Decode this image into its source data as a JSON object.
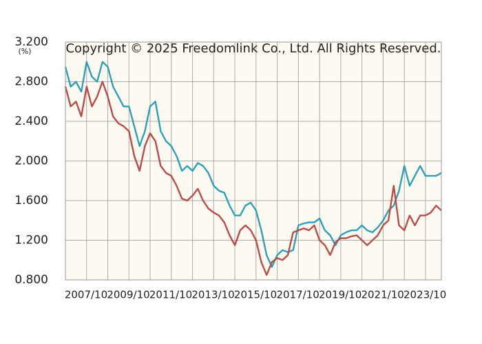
{
  "chart_data": {
    "type": "line",
    "annotation": "Copyright © 2025 Freedomlink Co., Ltd. All Rights Reserved.",
    "y_unit": "(%)",
    "categories": [
      "2007/10",
      null,
      null,
      null,
      null,
      null,
      null,
      null,
      "2009/10",
      null,
      null,
      null,
      null,
      null,
      null,
      null,
      "2011/10",
      null,
      null,
      null,
      null,
      null,
      null,
      null,
      "2013/10",
      null,
      null,
      null,
      null,
      null,
      null,
      null,
      "2015/10",
      null,
      null,
      null,
      null,
      null,
      null,
      null,
      "2017/10",
      null,
      null,
      null,
      null,
      null,
      null,
      null,
      "2019/10",
      null,
      null,
      null,
      null,
      null,
      null,
      null,
      "2021/10",
      null,
      null,
      null,
      null,
      null,
      null,
      null,
      "2023/10",
      null,
      null,
      null,
      null,
      null,
      null,
      null
    ],
    "series": [
      {
        "color": "#2e9fb8",
        "values": [
          2.95,
          2.75,
          2.8,
          2.7,
          3.0,
          2.85,
          2.8,
          3.0,
          2.95,
          2.75,
          2.65,
          2.55,
          2.55,
          2.35,
          2.15,
          2.3,
          2.55,
          2.6,
          2.3,
          2.2,
          2.15,
          2.05,
          1.9,
          1.95,
          1.9,
          1.98,
          1.95,
          1.88,
          1.75,
          1.7,
          1.68,
          1.55,
          1.45,
          1.45,
          1.55,
          1.58,
          1.5,
          1.3,
          1.05,
          0.93,
          1.05,
          1.1,
          1.08,
          1.1,
          1.35,
          1.37,
          1.38,
          1.38,
          1.42,
          1.3,
          1.25,
          1.15,
          1.25,
          1.28,
          1.3,
          1.3,
          1.35,
          1.3,
          1.28,
          1.33,
          1.4,
          1.5,
          1.55,
          1.7,
          1.95,
          1.75,
          1.85,
          1.95,
          1.85,
          1.85,
          1.85,
          1.88
        ]
      },
      {
        "color": "#bb4b45",
        "values": [
          2.75,
          2.55,
          2.6,
          2.45,
          2.75,
          2.55,
          2.65,
          2.8,
          2.65,
          2.45,
          2.38,
          2.35,
          2.3,
          2.05,
          1.9,
          2.15,
          2.28,
          2.2,
          1.95,
          1.88,
          1.85,
          1.75,
          1.62,
          1.6,
          1.65,
          1.72,
          1.6,
          1.52,
          1.48,
          1.45,
          1.38,
          1.25,
          1.15,
          1.3,
          1.35,
          1.3,
          1.2,
          0.98,
          0.85,
          0.98,
          1.02,
          1.0,
          1.05,
          1.28,
          1.3,
          1.32,
          1.3,
          1.35,
          1.2,
          1.15,
          1.05,
          1.18,
          1.22,
          1.22,
          1.24,
          1.25,
          1.2,
          1.15,
          1.2,
          1.25,
          1.35,
          1.4,
          1.75,
          1.35,
          1.3,
          1.45,
          1.35,
          1.45,
          1.45,
          1.48,
          1.55,
          1.5
        ]
      }
    ],
    "ylim": [
      0.8,
      3.2
    ],
    "yticks": [
      {
        "value": 0.8,
        "label": "0.800"
      },
      {
        "value": 1.2,
        "label": "1.200"
      },
      {
        "value": 1.6,
        "label": "1.600"
      },
      {
        "value": 2.0,
        "label": "2.000"
      },
      {
        "value": 2.4,
        "label": "2.400"
      },
      {
        "value": 2.8,
        "label": "2.800"
      },
      {
        "value": 3.2,
        "label": "3.200"
      }
    ],
    "grid": true
  }
}
